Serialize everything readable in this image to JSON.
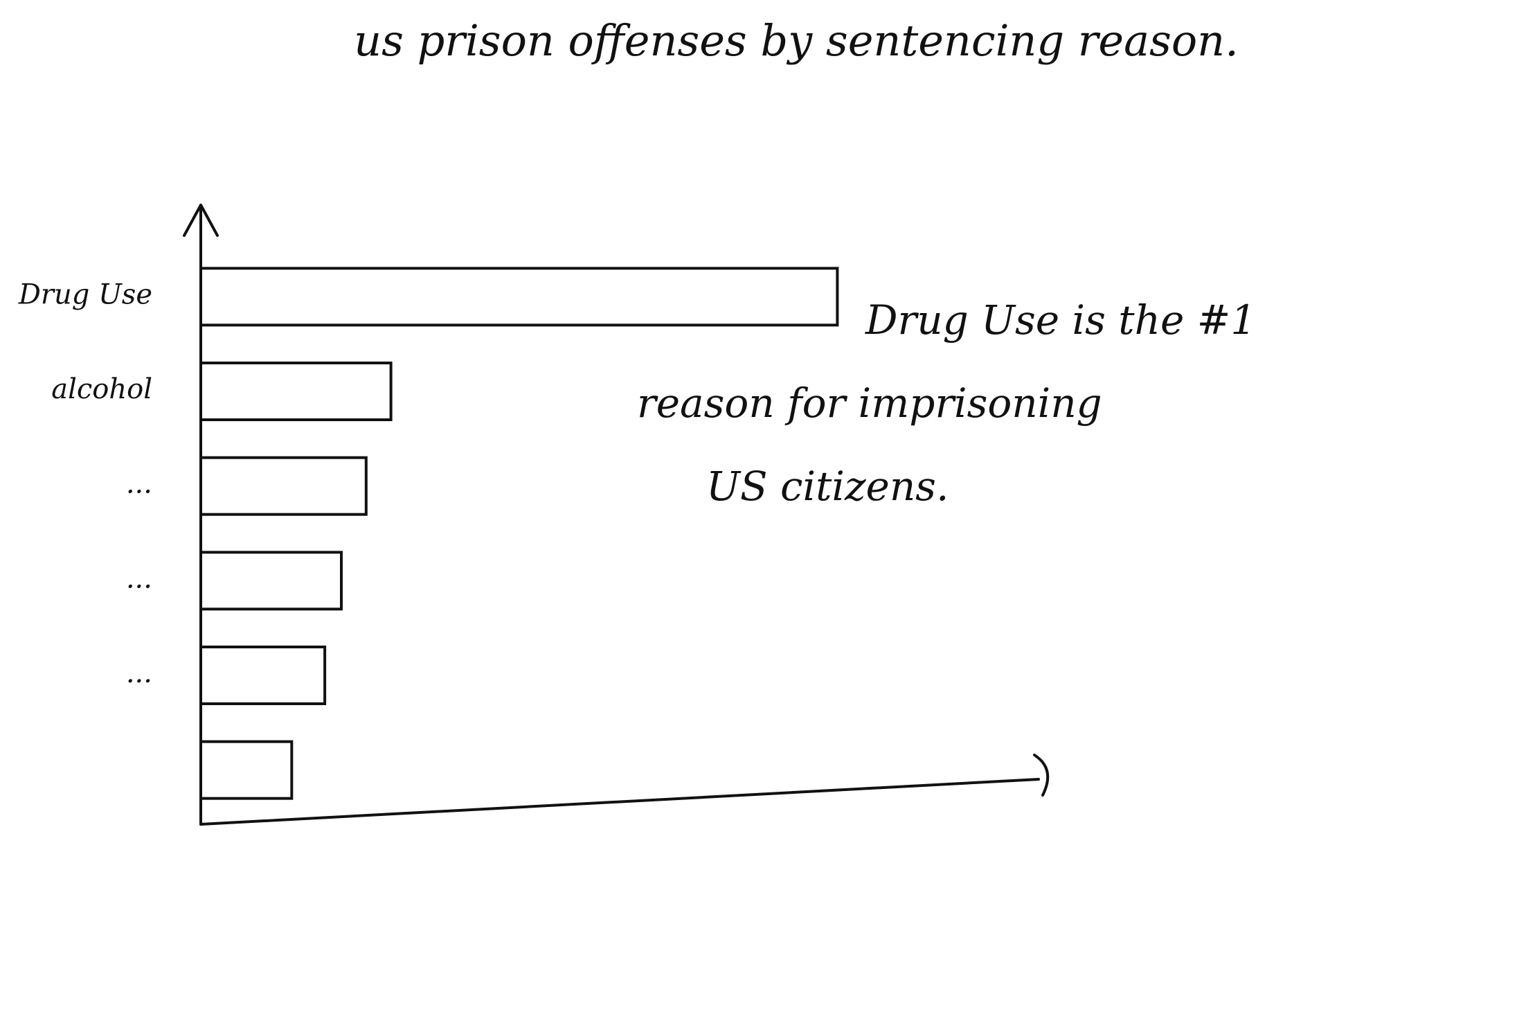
{
  "chart_data": {
    "type": "bar",
    "orientation": "horizontal",
    "title": "us prison offenses by sentencing reason.",
    "categories": [
      "Drug Use",
      "alcohol",
      "...",
      "...",
      "...",
      null
    ],
    "values": [
      77,
      23,
      20,
      17,
      15,
      11
    ],
    "xlim": [
      0,
      100
    ],
    "color": "#111111",
    "annotation": [
      "Drug Use is the #1",
      "reason for imprisoning",
      "US citizens."
    ]
  }
}
